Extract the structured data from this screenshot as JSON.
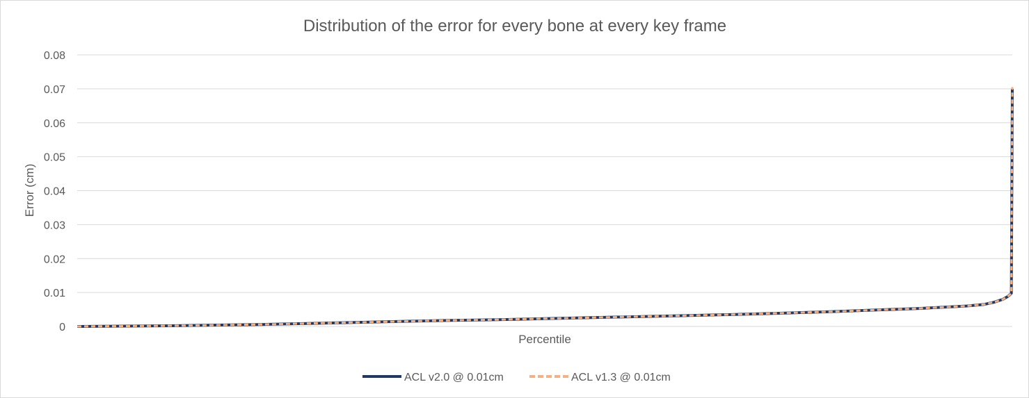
{
  "chart_data": {
    "type": "line",
    "title": "Distribution of the error for every bone at every key frame",
    "xlabel": "Percentile",
    "ylabel": "Error (cm)",
    "ylim": [
      0,
      0.08
    ],
    "yticks": [
      "0",
      "0.01",
      "0.02",
      "0.03",
      "0.04",
      "0.05",
      "0.06",
      "0.07",
      "0.08"
    ],
    "xlim": [
      0,
      100
    ],
    "grid": true,
    "legend_position": "bottom",
    "x": [
      0,
      5,
      10,
      15,
      20,
      25,
      30,
      35,
      40,
      45,
      50,
      55,
      60,
      65,
      70,
      75,
      80,
      85,
      90,
      95,
      97,
      98,
      99,
      99.5,
      99.8,
      99.9,
      100
    ],
    "series": [
      {
        "name": "ACL v2.0 @ 0.01cm",
        "color": "#203864",
        "style": "solid",
        "values": [
          0.0,
          0.0001,
          0.0002,
          0.0004,
          0.0006,
          0.0009,
          0.0012,
          0.0015,
          0.0018,
          0.002,
          0.0023,
          0.0026,
          0.0029,
          0.0032,
          0.0035,
          0.0039,
          0.0043,
          0.0048,
          0.0053,
          0.006,
          0.0065,
          0.0071,
          0.008,
          0.0088,
          0.0095,
          0.0098,
          0.07
        ]
      },
      {
        "name": "ACL v1.3 @ 0.01cm",
        "color": "#f4b183",
        "style": "dashed",
        "values": [
          0.0,
          0.0001,
          0.0002,
          0.0004,
          0.0006,
          0.0009,
          0.0012,
          0.0015,
          0.0018,
          0.002,
          0.0023,
          0.0026,
          0.0029,
          0.0032,
          0.0035,
          0.0039,
          0.0043,
          0.0048,
          0.0053,
          0.006,
          0.0065,
          0.0071,
          0.008,
          0.0088,
          0.0095,
          0.0098,
          0.0705
        ]
      }
    ]
  }
}
